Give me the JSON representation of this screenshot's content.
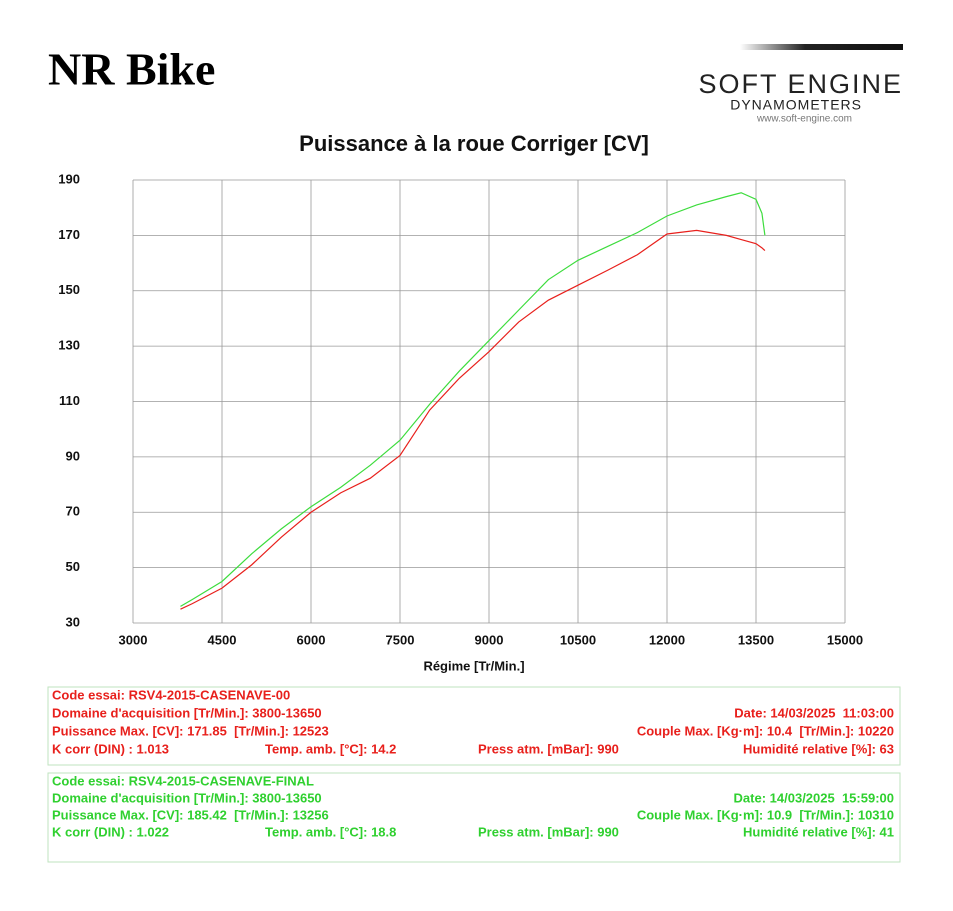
{
  "header": {
    "title": "NR Bike",
    "logo": "SOFT ENGINE",
    "logo_sub": "DYNAMOMETERS",
    "logo_url": "www.soft-engine.com"
  },
  "chart_data": {
    "type": "line",
    "title": "Puissance à la roue Corriger [CV]",
    "x_label": "Régime [Tr/Min.]",
    "x": [
      3800,
      4000,
      4500,
      5000,
      5500,
      6000,
      6500,
      7000,
      7500,
      8000,
      8500,
      9000,
      9500,
      10000,
      10500,
      11000,
      11500,
      12000,
      12500,
      13000,
      13250,
      13500,
      13600,
      13650
    ],
    "series": [
      {
        "color": "#e8201c",
        "values": [
          35,
          37,
          42.6,
          51,
          61,
          70,
          77,
          82.3,
          90.5,
          106.9,
          118.4,
          128,
          138.7,
          146.6,
          152,
          157.4,
          163,
          170.5,
          171.8,
          170,
          168.5,
          167,
          165.5,
          164.5
        ]
      },
      {
        "color": "#3ddc3d",
        "values": [
          36,
          38.5,
          45,
          55,
          64,
          72,
          79,
          87,
          96,
          109,
          121,
          132,
          143,
          154,
          161,
          166,
          171,
          177,
          181,
          184,
          185.4,
          183,
          178,
          170
        ]
      }
    ],
    "xlim": [
      3000,
      15000
    ],
    "xticks": [
      3000,
      4500,
      6000,
      7500,
      9000,
      10500,
      12000,
      13500,
      15000
    ],
    "ylim": [
      30,
      190
    ],
    "yticks": [
      30,
      50,
      70,
      90,
      110,
      130,
      150,
      170,
      190
    ],
    "grid": true
  },
  "info_boxes": [
    {
      "color": "#e8201c",
      "rows": [
        [
          "Code essai: RSV4-2015-CASENAVE-00"
        ],
        [
          "Domaine d'acquisition [Tr/Min.]: 3800-13650",
          "Date: 14/03/2025  11:03:00"
        ],
        [
          "Puissance Max. [CV]: 171.85  [Tr/Min.]: 12523",
          "Couple Max. [Kg·m]: 10.4  [Tr/Min.]: 10220"
        ],
        [
          "K corr (DIN) : 1.013",
          "Temp. amb. [°C]: 14.2",
          "Press atm. [mBar]: 990",
          "Humidité relative [%]: 63"
        ]
      ]
    },
    {
      "color": "#2fd02f",
      "rows": [
        [
          "Code essai: RSV4-2015-CASENAVE-FINAL"
        ],
        [
          "Domaine d'acquisition [Tr/Min.]: 3800-13650",
          "Date: 14/03/2025  15:59:00"
        ],
        [
          "Puissance Max. [CV]: 185.42  [Tr/Min.]: 13256",
          "Couple Max. [Kg·m]: 10.9  [Tr/Min.]: 10310"
        ],
        [
          "K corr (DIN) : 1.022",
          "Temp. amb. [°C]: 18.8",
          "Press atm. [mBar]: 990",
          "Humidité relative [%]: 41"
        ]
      ]
    }
  ]
}
